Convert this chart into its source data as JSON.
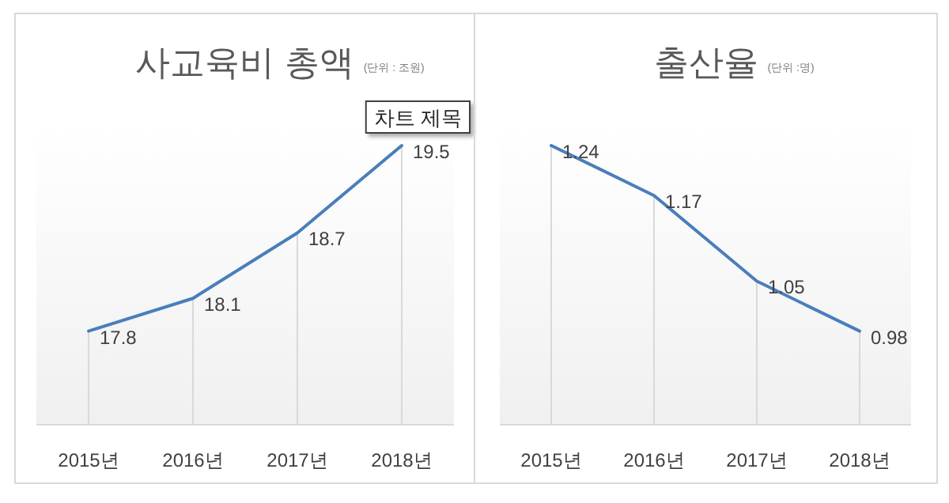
{
  "chart_data": [
    {
      "type": "line",
      "title": "사교육비 총액",
      "subtitle": "(단위 : 조원)",
      "annotations": [
        "차트 제목"
      ],
      "categories": [
        "2015년",
        "2016년",
        "2017년",
        "2018년"
      ],
      "series": [
        {
          "color": "#4a7ebb",
          "values": [
            17.8,
            18.1,
            18.7,
            19.5
          ]
        }
      ],
      "data_labels": true,
      "grid": "x",
      "marker": "none",
      "line_style": "solid"
    },
    {
      "type": "line",
      "title": "출산율",
      "subtitle": "(단위 :명)",
      "categories": [
        "2015년",
        "2016년",
        "2017년",
        "2018년"
      ],
      "series": [
        {
          "color": "#4a7ebb",
          "values": [
            1.24,
            1.17,
            1.05,
            0.98
          ]
        }
      ],
      "data_labels": true,
      "grid": "x",
      "marker": "none",
      "line_style": "solid"
    }
  ]
}
